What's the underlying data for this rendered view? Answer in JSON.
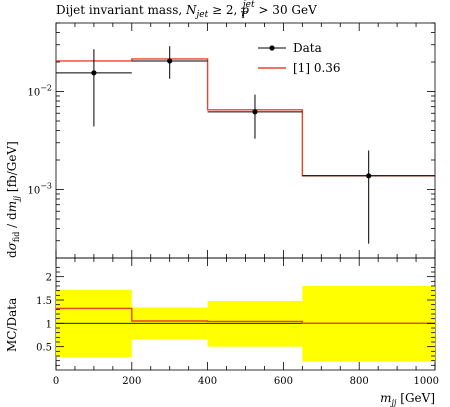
{
  "chart_data": [
    {
      "type": "line",
      "title": "Dijet invariant mass, N_jet ≥ 2, p_T^jet > 30 GeV",
      "title_parts": {
        "prefix": "Dijet invariant mass, ",
        "njet": "N",
        "njet_sub": "jet",
        "geq": " ≥ 2, ",
        "pt": "p",
        "pt_sub": "T",
        "pt_sup": "jet",
        "cut": " > 30 GeV"
      },
      "ylabel": "dσ_fid / dm_jj [fb/GeV]",
      "ylabel_parts": {
        "d1": "d",
        "sigma": "σ",
        "sigma_sub": "fid",
        "slash": " / d",
        "m": "m",
        "m_sub": "jj",
        "unit": " [fb/GeV]"
      },
      "yscale": "log",
      "ylim": [
        0.0002,
        0.05
      ],
      "y_tick_labels": [
        {
          "value": 0.01,
          "base": "10",
          "exp": "−2"
        },
        {
          "value": 0.001,
          "base": "10",
          "exp": "−3"
        }
      ],
      "legend_position": "top-right",
      "series": [
        {
          "name": "Data",
          "kind": "points",
          "color": "#000000",
          "points": [
            {
              "x": 100,
              "y": 0.0155,
              "ylow": 0.0044,
              "yhigh": 0.027,
              "xlow": 0,
              "xhigh": 200
            },
            {
              "x": 300,
              "y": 0.0205,
              "ylow": 0.0135,
              "yhigh": 0.029,
              "xlow": 200,
              "xhigh": 400
            },
            {
              "x": 525,
              "y": 0.0062,
              "ylow": 0.0033,
              "yhigh": 0.0093,
              "xlow": 400,
              "xhigh": 650
            },
            {
              "x": 825,
              "y": 0.00138,
              "ylow": 0.00028,
              "yhigh": 0.0025,
              "xlow": 650,
              "xhigh": 1000
            }
          ]
        },
        {
          "name": "[1] 0.36",
          "kind": "histogram",
          "color": "#e8452c",
          "bins": [
            {
              "xlow": 0,
              "xhigh": 200,
              "y": 0.0205
            },
            {
              "xlow": 200,
              "xhigh": 400,
              "y": 0.0215
            },
            {
              "xlow": 400,
              "xhigh": 650,
              "y": 0.0065
            },
            {
              "xlow": 650,
              "xhigh": 1000,
              "y": 0.00138
            }
          ]
        }
      ]
    },
    {
      "type": "area",
      "ylabel": "MC/Data",
      "xlabel": "m_jj [GeV]",
      "xlabel_parts": {
        "m": "m",
        "m_sub": "jj",
        "unit": " [GeV]"
      },
      "xlim": [
        0,
        1000
      ],
      "ylim": [
        0,
        2.4
      ],
      "x_ticks": [
        0,
        200,
        400,
        600,
        800,
        1000
      ],
      "y_ticks": [
        0.5,
        1,
        1.5,
        2
      ],
      "band_color": "#ffff00",
      "reference_line": 1,
      "bins": [
        {
          "xlow": 0,
          "xhigh": 200,
          "band_low": 0.28,
          "band_high": 1.72,
          "ratio": 1.32
        },
        {
          "xlow": 200,
          "xhigh": 400,
          "band_low": 0.66,
          "band_high": 1.34,
          "ratio": 1.05
        },
        {
          "xlow": 400,
          "xhigh": 650,
          "band_low": 0.5,
          "band_high": 1.48,
          "ratio": 1.04
        },
        {
          "xlow": 650,
          "xhigh": 1000,
          "band_low": 0.18,
          "band_high": 1.8,
          "ratio": 1.0
        }
      ]
    }
  ]
}
